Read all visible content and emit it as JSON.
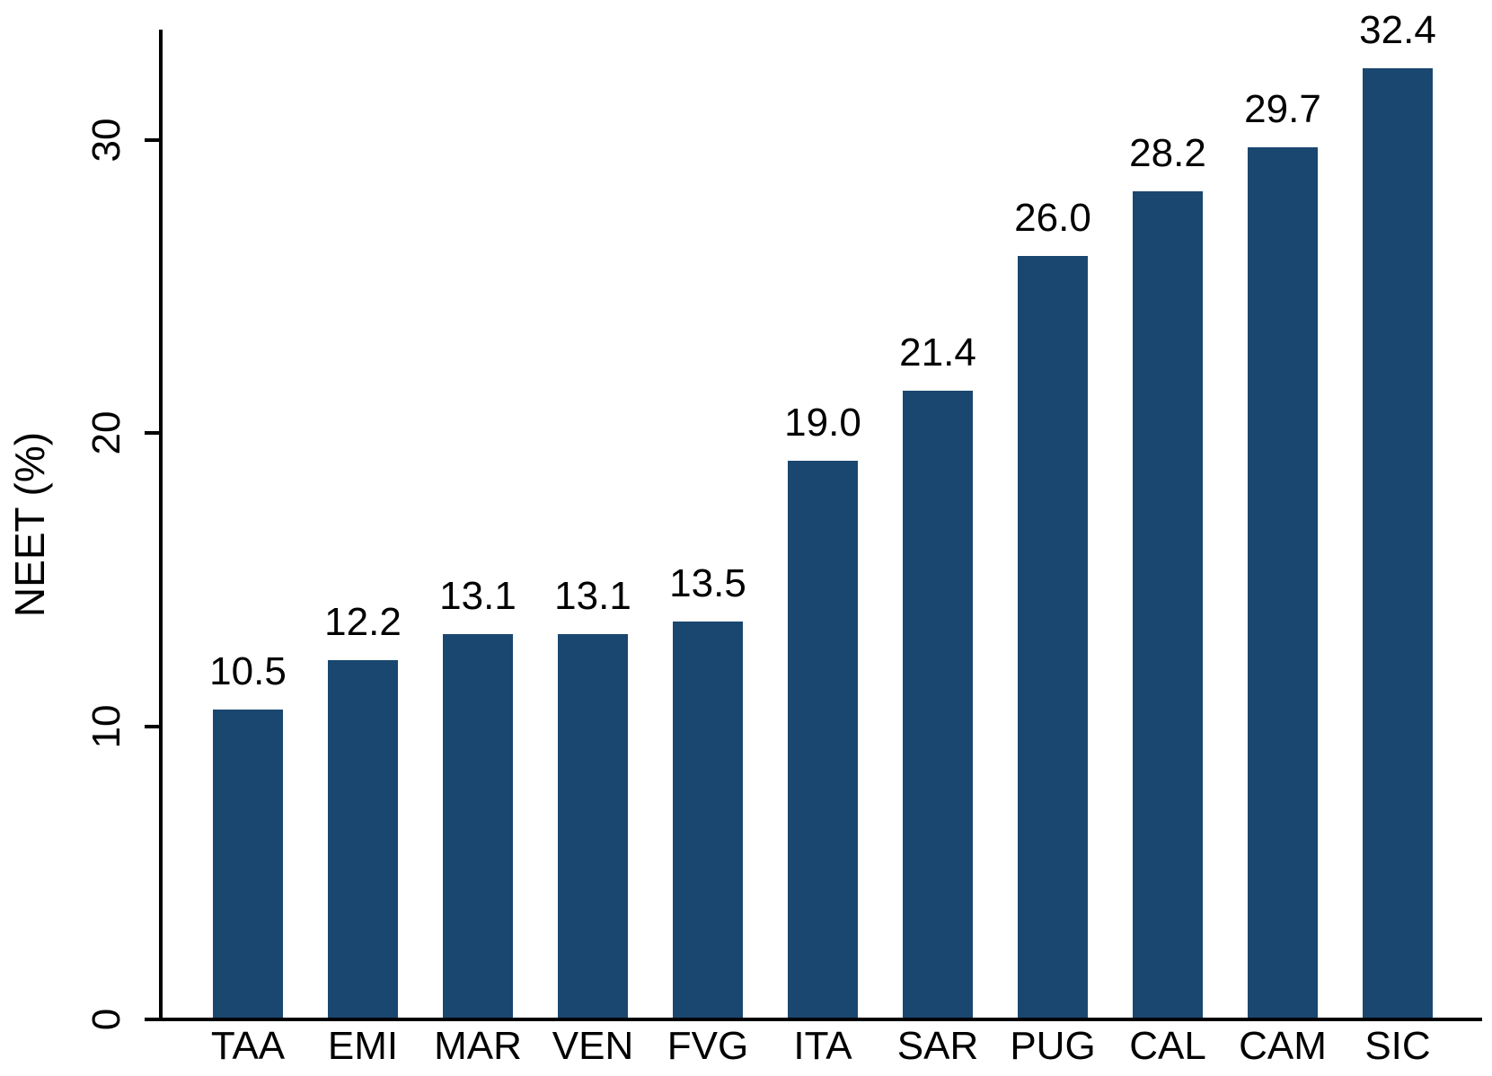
{
  "chart_data": {
    "type": "bar",
    "title": "",
    "xlabel": "",
    "ylabel": "NEET (%)",
    "categories": [
      "TAA",
      "EMI",
      "MAR",
      "VEN",
      "FVG",
      "ITA",
      "SAR",
      "PUG",
      "CAL",
      "CAM",
      "SIC"
    ],
    "values": [
      10.5,
      12.2,
      13.1,
      13.1,
      13.5,
      19.0,
      21.4,
      26.0,
      28.2,
      29.7,
      32.4
    ],
    "value_labels": [
      "10.5",
      "12.2",
      "13.1",
      "13.1",
      "13.5",
      "19.0",
      "21.4",
      "26.0",
      "28.2",
      "29.7",
      "32.4"
    ],
    "y_ticks": [
      0,
      10,
      20,
      30
    ],
    "y_tick_labels": [
      "0",
      "10",
      "20",
      "30"
    ],
    "ylim": [
      0,
      33.7
    ],
    "grid": false,
    "legend": "none",
    "tick_label_rotation": "vertical",
    "colors": {
      "bar": "#1a476f",
      "axis": "#000000",
      "text": "#000000",
      "background": "#ffffff"
    }
  }
}
